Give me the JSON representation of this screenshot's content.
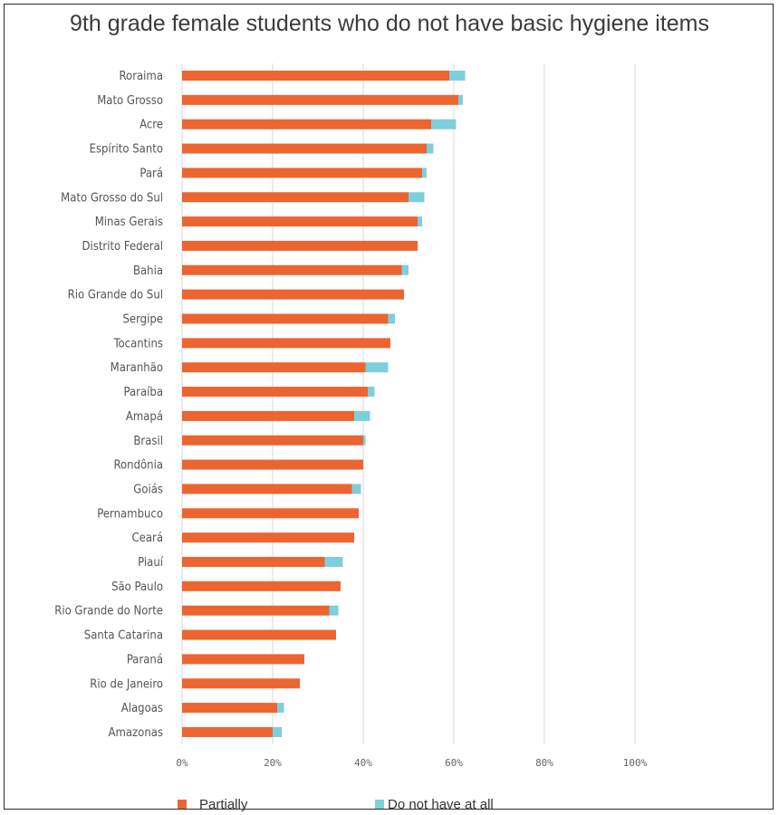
{
  "chart_data": {
    "type": "bar",
    "orientation": "horizontal",
    "stacked": true,
    "title": "9th grade female students who do not have basic hygiene items",
    "categories": [
      "Roraima",
      "Mato Grosso",
      "Acre",
      "Espírito Santo",
      "Pará",
      "Mato Grosso do Sul",
      "Minas Gerais",
      "Distrito Federal",
      "Bahia",
      "Rio Grande do Sul",
      "Sergipe",
      "Tocantins",
      "Maranhão",
      "Paraíba",
      "Amapá",
      "Brasil",
      "Rondônia",
      "Goiás",
      "Pernambuco",
      "Ceará",
      "Piauí",
      "São Paulo",
      "Rio Grande do Norte",
      "Santa Catarina",
      "Paraná",
      "Rio de Janeiro",
      "Alagoas",
      "Amazonas"
    ],
    "series": [
      {
        "name": "Partially",
        "color": "#ec6530",
        "values": [
          59.0,
          61.0,
          55.0,
          54.0,
          53.0,
          50.0,
          52.0,
          52.0,
          48.5,
          49.0,
          45.5,
          46.0,
          40.5,
          41.0,
          38.0,
          40.0,
          40.0,
          37.5,
          39.0,
          38.0,
          31.5,
          35.0,
          32.5,
          34.0,
          27.0,
          26.0,
          21.0,
          20.0
        ]
      },
      {
        "name": "Do not have at all",
        "color": "#7ecfdc",
        "values": [
          3.5,
          1.0,
          5.5,
          1.5,
          1.0,
          3.5,
          1.0,
          0.0,
          1.5,
          0.0,
          1.5,
          0.0,
          5.0,
          1.5,
          3.5,
          0.5,
          0.0,
          2.0,
          0.0,
          0.0,
          4.0,
          0.0,
          2.0,
          0.0,
          0.0,
          0.0,
          1.5,
          2.0
        ]
      }
    ],
    "xlim": [
      0,
      100
    ],
    "x_ticks": [
      0,
      20,
      40,
      60,
      80,
      100
    ],
    "x_tick_labels": [
      "0%",
      "20%",
      "40%",
      "60%",
      "80%",
      "100%"
    ],
    "grid": "vertical",
    "legend_position": "bottom-left"
  }
}
